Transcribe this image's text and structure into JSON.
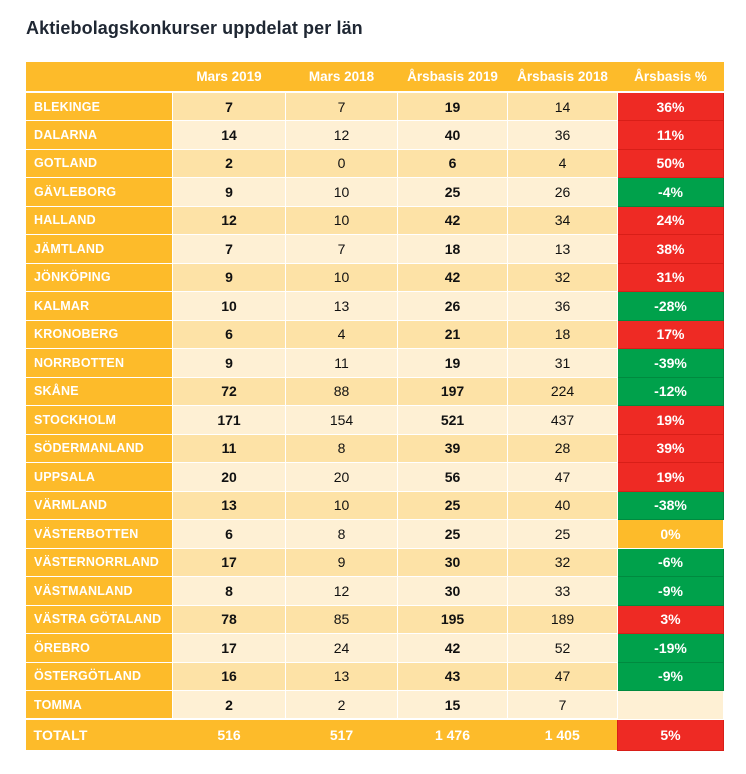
{
  "title": "Aktiebolagskonkurser uppdelat per län",
  "colors": {
    "header": "#fdbb2a",
    "row_odd": "#fde2a6",
    "row_even": "#fef0d4",
    "increase": "#ee2a24",
    "decrease": "#00a14b",
    "unchanged": "#fdbb2a"
  },
  "table": {
    "columns": [
      "",
      "Mars 2019",
      "Mars 2018",
      "Årsbasis 2019",
      "Årsbasis 2018",
      "Årsbasis %"
    ],
    "rows": [
      {
        "name": "BLEKINGE",
        "mars2019": "7",
        "mars2018": "7",
        "ars2019": "19",
        "ars2018": "14",
        "pct": "36%",
        "trend": "up"
      },
      {
        "name": "DALARNA",
        "mars2019": "14",
        "mars2018": "12",
        "ars2019": "40",
        "ars2018": "36",
        "pct": "11%",
        "trend": "up"
      },
      {
        "name": "GOTLAND",
        "mars2019": "2",
        "mars2018": "0",
        "ars2019": "6",
        "ars2018": "4",
        "pct": "50%",
        "trend": "up"
      },
      {
        "name": "GÄVLEBORG",
        "mars2019": "9",
        "mars2018": "10",
        "ars2019": "25",
        "ars2018": "26",
        "pct": "-4%",
        "trend": "down"
      },
      {
        "name": "HALLAND",
        "mars2019": "12",
        "mars2018": "10",
        "ars2019": "42",
        "ars2018": "34",
        "pct": "24%",
        "trend": "up"
      },
      {
        "name": "JÄMTLAND",
        "mars2019": "7",
        "mars2018": "7",
        "ars2019": "18",
        "ars2018": "13",
        "pct": "38%",
        "trend": "up"
      },
      {
        "name": "JÖNKÖPING",
        "mars2019": "9",
        "mars2018": "10",
        "ars2019": "42",
        "ars2018": "32",
        "pct": "31%",
        "trend": "up"
      },
      {
        "name": "KALMAR",
        "mars2019": "10",
        "mars2018": "13",
        "ars2019": "26",
        "ars2018": "36",
        "pct": "-28%",
        "trend": "down"
      },
      {
        "name": "KRONOBERG",
        "mars2019": "6",
        "mars2018": "4",
        "ars2019": "21",
        "ars2018": "18",
        "pct": "17%",
        "trend": "up"
      },
      {
        "name": "NORRBOTTEN",
        "mars2019": "9",
        "mars2018": "11",
        "ars2019": "19",
        "ars2018": "31",
        "pct": "-39%",
        "trend": "down"
      },
      {
        "name": "SKÅNE",
        "mars2019": "72",
        "mars2018": "88",
        "ars2019": "197",
        "ars2018": "224",
        "pct": "-12%",
        "trend": "down"
      },
      {
        "name": "STOCKHOLM",
        "mars2019": "171",
        "mars2018": "154",
        "ars2019": "521",
        "ars2018": "437",
        "pct": "19%",
        "trend": "up"
      },
      {
        "name": "SÖDERMANLAND",
        "mars2019": "11",
        "mars2018": "8",
        "ars2019": "39",
        "ars2018": "28",
        "pct": "39%",
        "trend": "up"
      },
      {
        "name": "UPPSALA",
        "mars2019": "20",
        "mars2018": "20",
        "ars2019": "56",
        "ars2018": "47",
        "pct": "19%",
        "trend": "up"
      },
      {
        "name": "VÄRMLAND",
        "mars2019": "13",
        "mars2018": "10",
        "ars2019": "25",
        "ars2018": "40",
        "pct": "-38%",
        "trend": "down"
      },
      {
        "name": "VÄSTERBOTTEN",
        "mars2019": "6",
        "mars2018": "8",
        "ars2019": "25",
        "ars2018": "25",
        "pct": "0%",
        "trend": "flat"
      },
      {
        "name": "VÄSTERNORRLAND",
        "mars2019": "17",
        "mars2018": "9",
        "ars2019": "30",
        "ars2018": "32",
        "pct": "-6%",
        "trend": "down"
      },
      {
        "name": "VÄSTMANLAND",
        "mars2019": "8",
        "mars2018": "12",
        "ars2019": "30",
        "ars2018": "33",
        "pct": "-9%",
        "trend": "down"
      },
      {
        "name": "VÄSTRA GÖTALAND",
        "mars2019": "78",
        "mars2018": "85",
        "ars2019": "195",
        "ars2018": "189",
        "pct": "3%",
        "trend": "up"
      },
      {
        "name": "ÖREBRO",
        "mars2019": "17",
        "mars2018": "24",
        "ars2019": "42",
        "ars2018": "52",
        "pct": "-19%",
        "trend": "down"
      },
      {
        "name": "ÖSTERGÖTLAND",
        "mars2019": "16",
        "mars2018": "13",
        "ars2019": "43",
        "ars2018": "47",
        "pct": "-9%",
        "trend": "down"
      },
      {
        "name": "TOMMA",
        "mars2019": "2",
        "mars2018": "2",
        "ars2019": "15",
        "ars2018": "7",
        "pct": "",
        "trend": "none"
      }
    ],
    "total": {
      "name": "TOTALT",
      "mars2019": "516",
      "mars2018": "517",
      "ars2019": "1 476",
      "ars2018": "1 405",
      "pct": "5%",
      "trend": "up"
    }
  }
}
